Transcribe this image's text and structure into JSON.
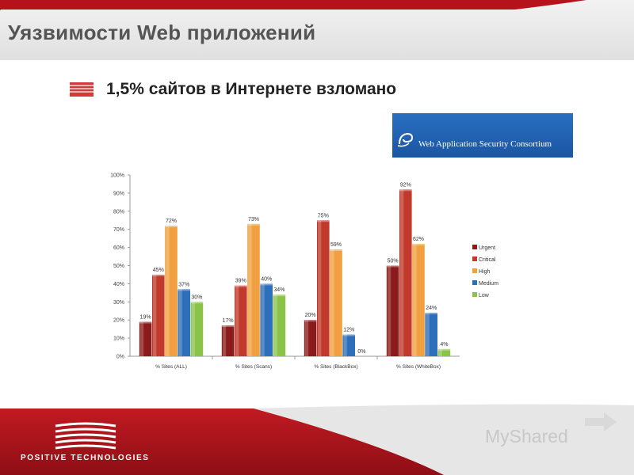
{
  "slide": {
    "title": "Уязвимости Web приложений",
    "bullet": "1,5% сайтов в Интернете взломано",
    "logo_text": "Web Application Security Consortium",
    "company": "POSITIVE TECHNOLOGIES",
    "watermark": "MyShared",
    "colors": {
      "brand_red": "#b5121b",
      "dark_red": "#8e0e15",
      "title_gray": "#555555"
    }
  },
  "chart_data": {
    "type": "bar",
    "categories": [
      "% Sites (ALL)",
      "% Sites (Scans)",
      "% Sites (BlackBox)",
      "% Sites (WhiteBox)"
    ],
    "series": [
      {
        "name": "Urgent",
        "color": "#8b1a1a",
        "values": [
          19,
          17,
          20,
          50
        ]
      },
      {
        "name": "Critical",
        "color": "#c0392b",
        "values": [
          45,
          39,
          75,
          92
        ]
      },
      {
        "name": "High",
        "color": "#f0a040",
        "values": [
          72,
          73,
          59,
          62
        ]
      },
      {
        "name": "Medium",
        "color": "#2e6fba",
        "values": [
          37,
          40,
          12,
          24
        ]
      },
      {
        "name": "Low",
        "color": "#8bc34a",
        "values": [
          30,
          34,
          0,
          4
        ]
      }
    ],
    "ylim": [
      0,
      100
    ],
    "yticks": [
      "0%",
      "10%",
      "20%",
      "30%",
      "40%",
      "50%",
      "60%",
      "70%",
      "80%",
      "90%",
      "100%"
    ],
    "value_suffix": "%",
    "legend": "right",
    "grid": false
  }
}
